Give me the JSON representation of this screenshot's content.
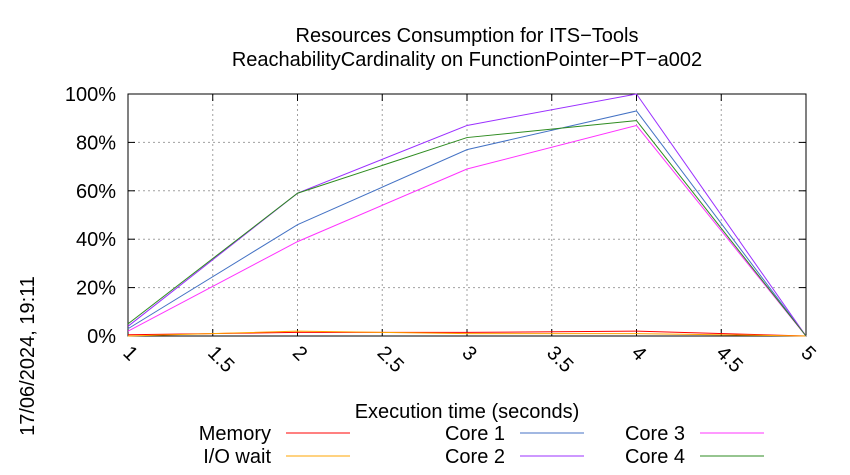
{
  "chart_data": {
    "type": "line",
    "title": "Resources Consumption for ITS−Tools",
    "subtitle": "ReachabilityCardinality on FunctionPointer−PT−a002",
    "xlabel": "Execution time (seconds)",
    "ylabel": "",
    "timestamp": "17/06/2024, 19:11",
    "xlim": [
      1,
      5
    ],
    "ylim": [
      0,
      100
    ],
    "x_ticks": [
      "1",
      "1.5",
      "2",
      "2.5",
      "3",
      "3.5",
      "4",
      "4.5",
      "5"
    ],
    "y_ticks": [
      "0%",
      "20%",
      "40%",
      "60%",
      "80%",
      "100%"
    ],
    "grid": true,
    "legend_position": "bottom",
    "x": [
      1,
      2,
      3,
      4,
      5
    ],
    "series": [
      {
        "name": "Memory",
        "color": "#ff0000",
        "values": [
          0.5,
          1.5,
          1.5,
          2,
          0
        ]
      },
      {
        "name": "I/O wait",
        "color": "#ffa500",
        "values": [
          0,
          2,
          1,
          1,
          0
        ]
      },
      {
        "name": "Core 1",
        "color": "#4472c4",
        "values": [
          3,
          46,
          77,
          93,
          0
        ]
      },
      {
        "name": "Core 2",
        "color": "#9b30ff",
        "values": [
          4,
          59,
          87,
          100,
          0
        ]
      },
      {
        "name": "Core 3",
        "color": "#ff33ff",
        "values": [
          2,
          39,
          69,
          87,
          0
        ]
      },
      {
        "name": "Core 4",
        "color": "#2e8b20",
        "values": [
          5,
          59,
          82,
          89,
          0
        ]
      }
    ]
  }
}
